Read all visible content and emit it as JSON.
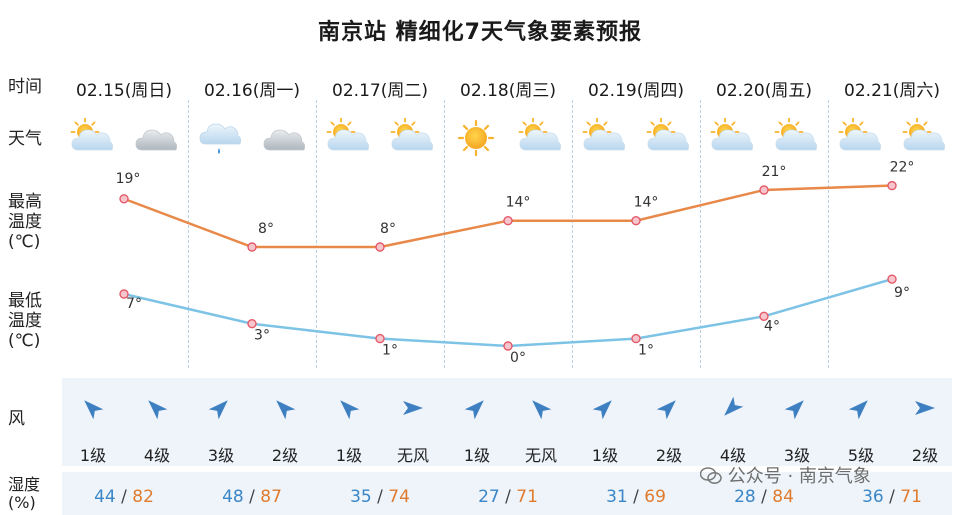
{
  "page_title": "南京站 精细化7天气象要素预报",
  "row_labels": {
    "time": "时间",
    "weather": "天气",
    "high": [
      "最高",
      "温度",
      "(℃)"
    ],
    "low": [
      "最低",
      "温度",
      "(℃)"
    ],
    "wind": "风",
    "humidity": [
      "湿度",
      "(%)"
    ]
  },
  "days": [
    {
      "date": "02.15(周日)",
      "weather_icons": [
        "partly-cloudy-icon",
        "cloudy-icon"
      ],
      "wind_levels": [
        "1级",
        "4级"
      ],
      "humidity_low": "44",
      "humidity_high": "82"
    },
    {
      "date": "02.16(周一)",
      "weather_icons": [
        "light-rain-icon",
        "cloudy-icon"
      ],
      "wind_levels": [
        "3级",
        "2级"
      ],
      "humidity_low": "48",
      "humidity_high": "87"
    },
    {
      "date": "02.17(周二)",
      "weather_icons": [
        "partly-cloudy-icon",
        "partly-cloudy-icon"
      ],
      "wind_levels": [
        "1级",
        "无风"
      ],
      "humidity_low": "35",
      "humidity_high": "74"
    },
    {
      "date": "02.18(周三)",
      "weather_icons": [
        "sunny-icon",
        "partly-cloudy-icon"
      ],
      "wind_levels": [
        "1级",
        "无风"
      ],
      "humidity_low": "27",
      "humidity_high": "71"
    },
    {
      "date": "02.19(周四)",
      "weather_icons": [
        "partly-cloudy-icon",
        "partly-cloudy-icon"
      ],
      "wind_levels": [
        "1级",
        "2级"
      ],
      "humidity_low": "31",
      "humidity_high": "69"
    },
    {
      "date": "02.20(周五)",
      "weather_icons": [
        "partly-cloudy-icon",
        "partly-cloudy-icon"
      ],
      "wind_levels": [
        "4级",
        "3级"
      ],
      "humidity_low": "28",
      "humidity_high": "84"
    },
    {
      "date": "02.21(周六)",
      "weather_icons": [
        "partly-cloudy-icon",
        "partly-cloudy-icon"
      ],
      "wind_levels": [
        "5级",
        "2级"
      ],
      "humidity_low": "36",
      "humidity_high": "71"
    }
  ],
  "humidity_separator": "/",
  "chart_data": {
    "type": "line",
    "categories": [
      "02.15(周日)",
      "02.16(周一)",
      "02.17(周二)",
      "02.18(周三)",
      "02.19(周四)",
      "02.20(周五)",
      "02.21(周六)"
    ],
    "series": [
      {
        "values": [
          19,
          8,
          8,
          14,
          14,
          21,
          22
        ],
        "labels": [
          "19°",
          "8°",
          "8°",
          "14°",
          "14°",
          "21°",
          "22°"
        ],
        "color": "#e8894a"
      },
      {
        "values": [
          7,
          3,
          1,
          0,
          1,
          4,
          9
        ],
        "labels": [
          "7°",
          "3°",
          "1°",
          "0°",
          "1°",
          "4°",
          "9°"
        ],
        "color": "#7cc3e6"
      }
    ],
    "marker_color": "#e35a6a"
  },
  "wind_arrow_color": "#3e7fc1",
  "wind_directions_deg": [
    [
      225,
      225
    ],
    [
      315,
      225
    ],
    [
      225,
      0
    ],
    [
      315,
      225
    ],
    [
      315,
      315
    ],
    [
      135,
      315
    ],
    [
      315,
      0
    ]
  ],
  "watermark": "公众号 · 南京气象"
}
